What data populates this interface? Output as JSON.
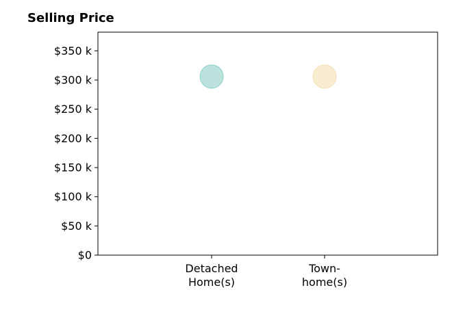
{
  "chart_data": {
    "type": "scatter",
    "title": "Selling Price",
    "xlabel": "",
    "ylabel": "",
    "categories": [
      [
        "Detached",
        "Home(s)"
      ],
      [
        "Town-",
        "home(s)"
      ]
    ],
    "points": [
      {
        "category_index": 0,
        "y": 306000,
        "color": "#8ecfc7"
      },
      {
        "category_index": 1,
        "y": 306000,
        "color": "#f4dfb3"
      }
    ],
    "y_ticks": [
      0,
      50000,
      100000,
      150000,
      200000,
      250000,
      300000,
      350000
    ],
    "y_tick_labels": [
      "$0",
      "$50 k",
      "$100 k",
      "$150 k",
      "$200 k",
      "$250 k",
      "$300 k",
      "$350 k"
    ],
    "ylim": [
      0,
      382000
    ],
    "grid": false,
    "legend": "none"
  }
}
